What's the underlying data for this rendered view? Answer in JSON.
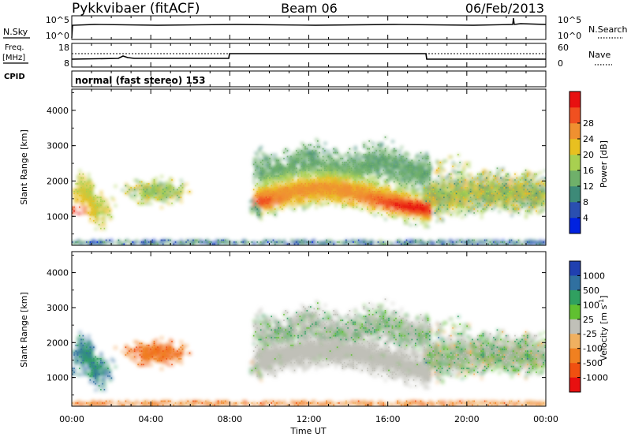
{
  "header": {
    "title": "Pykkvibaer (fitACF)",
    "beam": "Beam 06",
    "date": "06/Feb/2013"
  },
  "params": {
    "nsky_label": "N.Sky",
    "nsky_ticks": [
      "10^5",
      "10^0"
    ],
    "nsearch_label": "N.Search",
    "nsearch_ticks": [
      "10^5",
      "10^0"
    ],
    "freq_label": "Freq.",
    "freq_unit": "[MHz]",
    "freq_ticks": [
      "18",
      "8"
    ],
    "nave_label": "Nave",
    "nave_ticks": [
      "60",
      "0"
    ],
    "cpid_label": "CPID",
    "mode_text": "normal (fast stereo) 153"
  },
  "chart_data": [
    {
      "type": "heatmap",
      "title": "",
      "ylabel": "Slant Range [km]",
      "xlabel": "",
      "xlim": [
        "00:00",
        "24:00"
      ],
      "ylim": [
        180,
        4600
      ],
      "yticks": [
        "1000",
        "2000",
        "3000",
        "4000"
      ],
      "colorbar": {
        "label": "Power [dB]",
        "ticks": [
          "4",
          "8",
          "12",
          "16",
          "20",
          "24",
          "28"
        ],
        "colors": [
          "#0022e0",
          "#2a4fb0",
          "#3d8a78",
          "#6fb06a",
          "#a8d050",
          "#e8c020",
          "#f09030",
          "#f05020",
          "#e81010"
        ]
      },
      "features": [
        {
          "t_start": 0.0,
          "t_end": 1.8,
          "range": [
            900,
            2000
          ],
          "level": "12-28"
        },
        {
          "t_start": 2.0,
          "t_end": 6.5,
          "range": [
            1100,
            2000
          ],
          "level": "8-20"
        },
        {
          "t_start": 9.2,
          "t_end": 18.0,
          "range": [
            800,
            3300
          ],
          "level": "4-28"
        },
        {
          "t_start": 18.0,
          "t_end": 24.0,
          "range": [
            700,
            2700
          ],
          "level": "4-20"
        }
      ]
    },
    {
      "type": "heatmap",
      "title": "",
      "ylabel": "Slant Range [km]",
      "xlabel": "Time UT",
      "xlim": [
        "00:00",
        "24:00"
      ],
      "ylim": [
        180,
        4600
      ],
      "xticks": [
        "00:00",
        "04:00",
        "08:00",
        "12:00",
        "16:00",
        "20:00",
        "00:00"
      ],
      "yticks": [
        "1000",
        "2000",
        "3000",
        "4000"
      ],
      "colorbar": {
        "label": "Velocity [m s-1]",
        "ticks": [
          "1000",
          "500",
          "100",
          "25",
          "-25",
          "-100",
          "-500",
          "-1000"
        ],
        "colors": [
          "#2040b0",
          "#3070a0",
          "#30a060",
          "#60c030",
          "#c0c0b8",
          "#f0b060",
          "#f08020",
          "#f05010",
          "#e81010"
        ]
      },
      "features": [
        {
          "t_start": 0.0,
          "t_end": 2.0,
          "range": [
            800,
            2100
          ],
          "velocity": "100 to 1000"
        },
        {
          "t_start": 2.5,
          "t_end": 6.5,
          "range": [
            1100,
            2300
          ],
          "velocity": "-500 to -100"
        },
        {
          "t_start": 9.2,
          "t_end": 18.0,
          "range": [
            900,
            3300
          ],
          "velocity": "-25 to 25"
        },
        {
          "t_start": 18.0,
          "t_end": 24.0,
          "range": [
            700,
            2800
          ],
          "velocity": "-100 to 500"
        }
      ]
    }
  ]
}
